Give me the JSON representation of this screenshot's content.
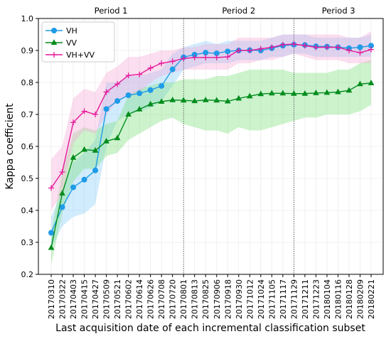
{
  "chart_data": {
    "type": "line",
    "title": "",
    "xlabel": "Last acquisition date of each incremental classification subset",
    "ylabel": "Kappa coefficient",
    "ylim": [
      0.2,
      1.0
    ],
    "yticks": [
      0.2,
      0.3,
      0.4,
      0.5,
      0.6,
      0.7,
      0.8,
      0.9,
      1.0
    ],
    "grid": true,
    "legend_position": "top-left",
    "categories": [
      "20170310",
      "20170322",
      "20170403",
      "20170415",
      "20170427",
      "20170509",
      "20170521",
      "20170602",
      "20170614",
      "20170626",
      "20170708",
      "20170720",
      "20170801",
      "20170813",
      "20170825",
      "20170906",
      "20170918",
      "20170930",
      "20171012",
      "20171024",
      "20171105",
      "20171117",
      "20171129",
      "20171211",
      "20171223",
      "20180104",
      "20180116",
      "20180128",
      "20180209",
      "20180221"
    ],
    "periods": [
      {
        "label": "Period 1",
        "start_index": 0,
        "end_index": 12
      },
      {
        "label": "Period 2",
        "start_index": 12,
        "end_index": 22
      },
      {
        "label": "Period 3",
        "start_index": 22,
        "end_index": 29
      }
    ],
    "series": [
      {
        "name": "VH",
        "color": "#1f9be8",
        "band_color": "#87cefa",
        "marker": "circle",
        "values": [
          0.33,
          0.41,
          0.472,
          0.496,
          0.525,
          0.717,
          0.742,
          0.76,
          0.766,
          0.776,
          0.789,
          0.841,
          0.879,
          0.887,
          0.893,
          0.891,
          0.897,
          0.9,
          0.901,
          0.9,
          0.907,
          0.915,
          0.918,
          0.917,
          0.913,
          0.912,
          0.91,
          0.907,
          0.91,
          0.915
        ],
        "lower": [
          0.28,
          0.35,
          0.38,
          0.39,
          0.42,
          0.6,
          0.68,
          0.7,
          0.71,
          0.72,
          0.74,
          0.79,
          0.84,
          0.85,
          0.86,
          0.86,
          0.86,
          0.87,
          0.87,
          0.87,
          0.88,
          0.88,
          0.89,
          0.89,
          0.88,
          0.88,
          0.88,
          0.88,
          0.88,
          0.88
        ],
        "upper": [
          0.38,
          0.46,
          0.55,
          0.58,
          0.62,
          0.8,
          0.8,
          0.82,
          0.82,
          0.83,
          0.84,
          0.89,
          0.91,
          0.92,
          0.93,
          0.92,
          0.93,
          0.93,
          0.93,
          0.93,
          0.94,
          0.95,
          0.95,
          0.95,
          0.94,
          0.94,
          0.94,
          0.94,
          0.94,
          0.95
        ]
      },
      {
        "name": "VV",
        "color": "#008c1c",
        "band_color": "#7be07b",
        "marker": "triangle",
        "values": [
          0.283,
          0.453,
          0.565,
          0.59,
          0.587,
          0.616,
          0.626,
          0.7,
          0.716,
          0.732,
          0.74,
          0.745,
          0.744,
          0.742,
          0.745,
          0.744,
          0.741,
          0.75,
          0.757,
          0.764,
          0.766,
          0.766,
          0.765,
          0.765,
          0.767,
          0.768,
          0.77,
          0.775,
          0.795,
          0.798
        ],
        "lower": [
          0.23,
          0.39,
          0.49,
          0.53,
          0.53,
          0.57,
          0.58,
          0.62,
          0.64,
          0.66,
          0.68,
          0.69,
          0.67,
          0.66,
          0.65,
          0.65,
          0.64,
          0.66,
          0.65,
          0.65,
          0.66,
          0.67,
          0.68,
          0.69,
          0.69,
          0.7,
          0.7,
          0.7,
          0.71,
          0.73
        ],
        "upper": [
          0.33,
          0.52,
          0.64,
          0.66,
          0.65,
          0.67,
          0.68,
          0.76,
          0.78,
          0.79,
          0.8,
          0.8,
          0.81,
          0.81,
          0.81,
          0.82,
          0.82,
          0.83,
          0.84,
          0.84,
          0.84,
          0.84,
          0.83,
          0.83,
          0.83,
          0.83,
          0.84,
          0.84,
          0.86,
          0.87
        ]
      },
      {
        "name": "VH+VV",
        "color": "#e6199a",
        "band_color": "#f5a8d6",
        "marker": "plus",
        "values": [
          0.47,
          0.52,
          0.675,
          0.71,
          0.7,
          0.77,
          0.795,
          0.822,
          0.825,
          0.845,
          0.86,
          0.866,
          0.875,
          0.878,
          0.878,
          0.878,
          0.88,
          0.9,
          0.9,
          0.905,
          0.91,
          0.918,
          0.92,
          0.915,
          0.91,
          0.91,
          0.91,
          0.9,
          0.893,
          0.903
        ],
        "lower": [
          0.4,
          0.45,
          0.61,
          0.65,
          0.64,
          0.7,
          0.74,
          0.76,
          0.77,
          0.8,
          0.82,
          0.83,
          0.84,
          0.84,
          0.84,
          0.84,
          0.84,
          0.86,
          0.86,
          0.87,
          0.87,
          0.88,
          0.89,
          0.88,
          0.87,
          0.87,
          0.87,
          0.86,
          0.86,
          0.86
        ],
        "upper": [
          0.56,
          0.6,
          0.75,
          0.78,
          0.77,
          0.83,
          0.85,
          0.88,
          0.88,
          0.89,
          0.9,
          0.9,
          0.91,
          0.91,
          0.92,
          0.92,
          0.92,
          0.94,
          0.94,
          0.94,
          0.94,
          0.95,
          0.95,
          0.95,
          0.95,
          0.95,
          0.95,
          0.94,
          0.94,
          0.96
        ]
      }
    ]
  }
}
